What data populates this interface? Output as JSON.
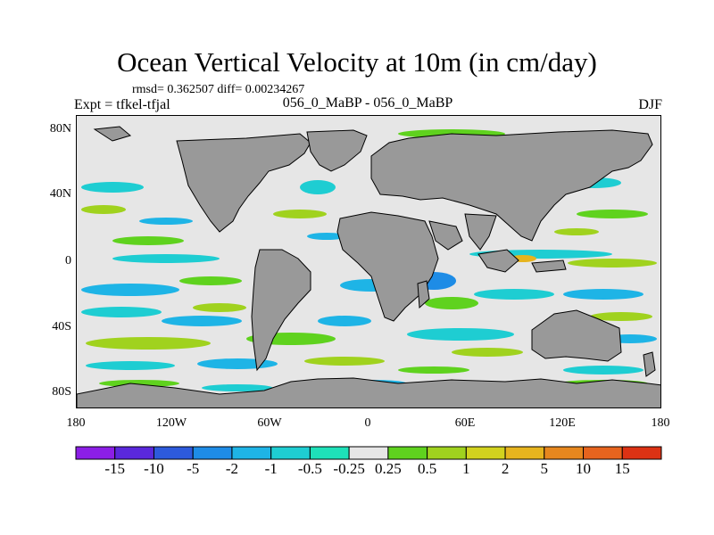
{
  "title": "Ocean Vertical Velocity at 10m (in cm/day)",
  "stats_text": "rmsd= 0.362507 diff= 0.00234267",
  "experiment_label": "Expt = tfkel-tfjal",
  "runs_label": "056_0_MaBP - 056_0_MaBP",
  "season": "DJF",
  "y_ticks": [
    "80N",
    "40N",
    "0",
    "40S",
    "80S"
  ],
  "x_ticks": [
    "180",
    "120W",
    "60W",
    "0",
    "60E",
    "120E",
    "180"
  ],
  "colorbar": {
    "labels": [
      "-15",
      "-10",
      "-5",
      "-2",
      "-1",
      "-0.5",
      "-0.25",
      "0.25",
      "0.5",
      "1",
      "2",
      "5",
      "10",
      "15"
    ],
    "colors": [
      "#8c1ee6",
      "#5a28dc",
      "#2d5adc",
      "#1e8ce6",
      "#1eb4e6",
      "#1ecdd2",
      "#1ee1b9",
      "#e6e6e6",
      "#5fd21e",
      "#a0d21e",
      "#d2d21e",
      "#e6b41e",
      "#e6871e",
      "#e6641e",
      "#dc3214"
    ]
  },
  "colors": {
    "land": "#999999",
    "ocean_background": "#e6e6e6"
  }
}
